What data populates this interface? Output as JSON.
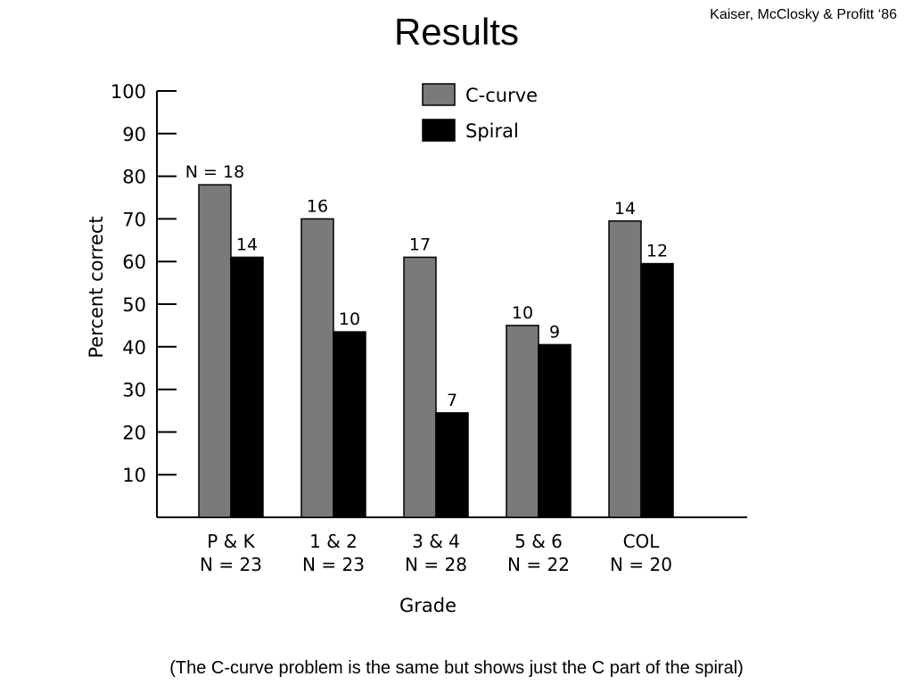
{
  "slide": {
    "title": "Results",
    "citation": "Kaiser, McClosky & Profitt ‘86",
    "caption": "(The C-curve problem is the same but shows just the C part of the spiral)"
  },
  "chart_data": {
    "type": "bar",
    "xlabel": "Grade",
    "ylabel": "Percent correct",
    "ylim": [
      0,
      100
    ],
    "yticks": [
      10,
      20,
      30,
      40,
      50,
      60,
      70,
      80,
      90,
      100
    ],
    "categories": [
      "P & K",
      "1 & 2",
      "3 & 4",
      "5 & 6",
      "COL"
    ],
    "category_counts": [
      "N = 23",
      "N = 23",
      "N = 28",
      "N = 22",
      "N = 20"
    ],
    "series": [
      {
        "name": "C-curve",
        "color": "#7a7a7a",
        "values": [
          78,
          70,
          61,
          45,
          69.5
        ],
        "labels": [
          "N = 18",
          "16",
          "17",
          "10",
          "14"
        ]
      },
      {
        "name": "Spiral",
        "color": "#000000",
        "values": [
          61,
          43.5,
          24.5,
          40.5,
          59.5
        ],
        "labels": [
          "14",
          "10",
          "7",
          "9",
          "12"
        ]
      }
    ],
    "legend_position": "top-center",
    "grid": false
  }
}
